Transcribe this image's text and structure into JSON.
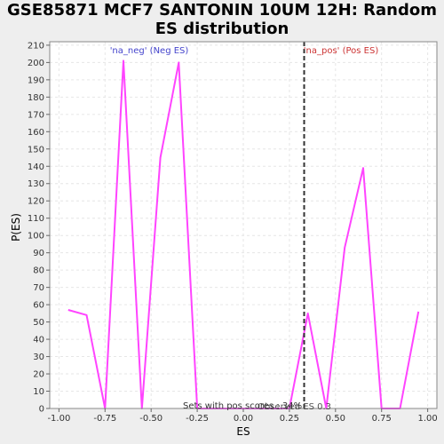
{
  "chart_data": {
    "type": "line",
    "title_line1": "GSE85871 MCF7 SANTONIN 10UM 12H: Random",
    "title_line2": "ES distribution",
    "xlabel": "ES",
    "ylabel": "P(ES)",
    "xlim": [
      -1.05,
      1.05
    ],
    "ylim": [
      0,
      212
    ],
    "x_ticks": [
      -1.0,
      -0.75,
      -0.5,
      -0.25,
      0.0,
      0.25,
      0.5,
      0.75,
      1.0
    ],
    "x_tick_labels": [
      "-1.00",
      "-0.75",
      "-0.50",
      "-0.25",
      "0.00",
      "0.25",
      "0.50",
      "0.75",
      "1.00"
    ],
    "y_ticks": [
      0,
      10,
      20,
      30,
      40,
      50,
      60,
      70,
      80,
      90,
      100,
      110,
      120,
      130,
      140,
      150,
      160,
      170,
      180,
      190,
      200,
      210
    ],
    "y_tick_labels": [
      "0",
      "10",
      "20",
      "30",
      "40",
      "50",
      "60",
      "70",
      "80",
      "90",
      "100",
      "110",
      "120",
      "130",
      "140",
      "150",
      "160",
      "170",
      "180",
      "190",
      "200",
      "210"
    ],
    "grid": true,
    "series": [
      {
        "color": "#ff44ff",
        "x": [
          -0.95,
          -0.85,
          -0.75,
          -0.65,
          -0.55,
          -0.45,
          -0.35,
          -0.25,
          -0.15,
          -0.05,
          0.05,
          0.15,
          0.25,
          0.35,
          0.45,
          0.55,
          0.65,
          0.75,
          0.85,
          0.95
        ],
        "y": [
          57,
          54,
          0,
          201,
          0,
          145,
          200,
          0,
          0,
          0,
          0,
          0,
          0,
          55,
          0,
          93,
          139,
          0,
          0,
          56
        ]
      }
    ],
    "observed_es": {
      "x": 0.33,
      "color": "#333333"
    },
    "annotations": {
      "neg_label": "'na_neg' (Neg ES)",
      "neg_color": "#4444cc",
      "pos_label": "'na_pos' (Pos ES)",
      "pos_color": "#cc3333",
      "bottom_text": "Sets with pos scores : 34%",
      "bottom_color": "#333333",
      "observed_text": "Observed ES 0.3",
      "observed_color": "#333333"
    }
  }
}
